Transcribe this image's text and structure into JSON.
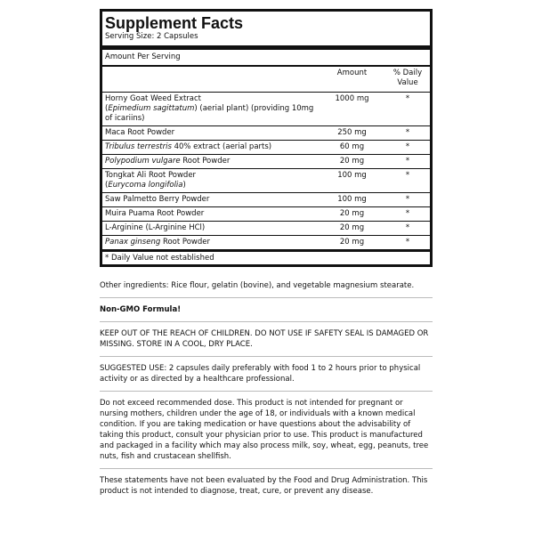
{
  "facts": {
    "title": "Supplement Facts",
    "serving_size": "Serving Size: 2 Capsules",
    "amount_per_serving": "Amount Per Serving",
    "col_amount": "Amount",
    "col_dv": "% Daily Value",
    "rows": [
      {
        "name_pre": "Horny Goat Weed Extract",
        "name_italic": "Epimedium sagittatum",
        "name_post": ") (aerial plant) (providing 10mg of icariins)",
        "amount": "1000 mg",
        "dv": "*"
      },
      {
        "name_pre": "Maca Root Powder",
        "name_italic": "",
        "name_post": "",
        "amount": "250 mg",
        "dv": "*"
      },
      {
        "name_pre": "",
        "name_italic": "Tribulus terrestris",
        "name_post": " 40% extract (aerial parts)",
        "amount": "60 mg",
        "dv": "*"
      },
      {
        "name_pre": "",
        "name_italic": "Polypodium vulgare",
        "name_post": " Root Powder",
        "amount": "20 mg",
        "dv": "*"
      },
      {
        "name_pre": "Tongkat Ali Root Powder",
        "name_italic": "Eurycoma longifolia",
        "name_post": ")",
        "amount": "100 mg",
        "dv": "*"
      },
      {
        "name_pre": "Saw Palmetto Berry Powder",
        "name_italic": "",
        "name_post": "",
        "amount": "100 mg",
        "dv": "*"
      },
      {
        "name_pre": "Muira Puama Root Powder",
        "name_italic": "",
        "name_post": "",
        "amount": "20 mg",
        "dv": "*"
      },
      {
        "name_pre": "L-Arginine (L-Arginine HCl)",
        "name_italic": "",
        "name_post": "",
        "amount": "20 mg",
        "dv": "*"
      },
      {
        "name_pre": "",
        "name_italic": "Panax ginseng",
        "name_post": " Root Powder",
        "amount": "20 mg",
        "dv": "*"
      }
    ],
    "footnote": "* Daily Value not established"
  },
  "sections": [
    "Other ingredients: Rice flour, gelatin (bovine), and vegetable magnesium stearate.",
    "Non-GMO Formula!",
    "KEEP OUT OF THE REACH OF CHILDREN. DO NOT USE IF SAFETY SEAL IS DAMAGED OR MISSING. STORE IN A COOL, DRY PLACE.",
    "SUGGESTED USE: 2 capsules daily preferably with food 1 to 2 hours prior to physical activity or as directed by a healthcare professional.",
    "Do not exceed recommended dose. This product is not intended for pregnant or nursing mothers, children under the age of 18, or individuals with a known medical condition. If you are taking medication or have questions about the advisability of taking this product, consult your physician prior to use. This product is manufactured and packaged in a facility which may also process milk, soy, wheat, egg, peanuts, tree nuts, fish and crustacean shellfish.",
    "These statements have not been evaluated by the Food and Drug Administration. This product is not intended to diagnose, treat, cure, or prevent any disease."
  ]
}
